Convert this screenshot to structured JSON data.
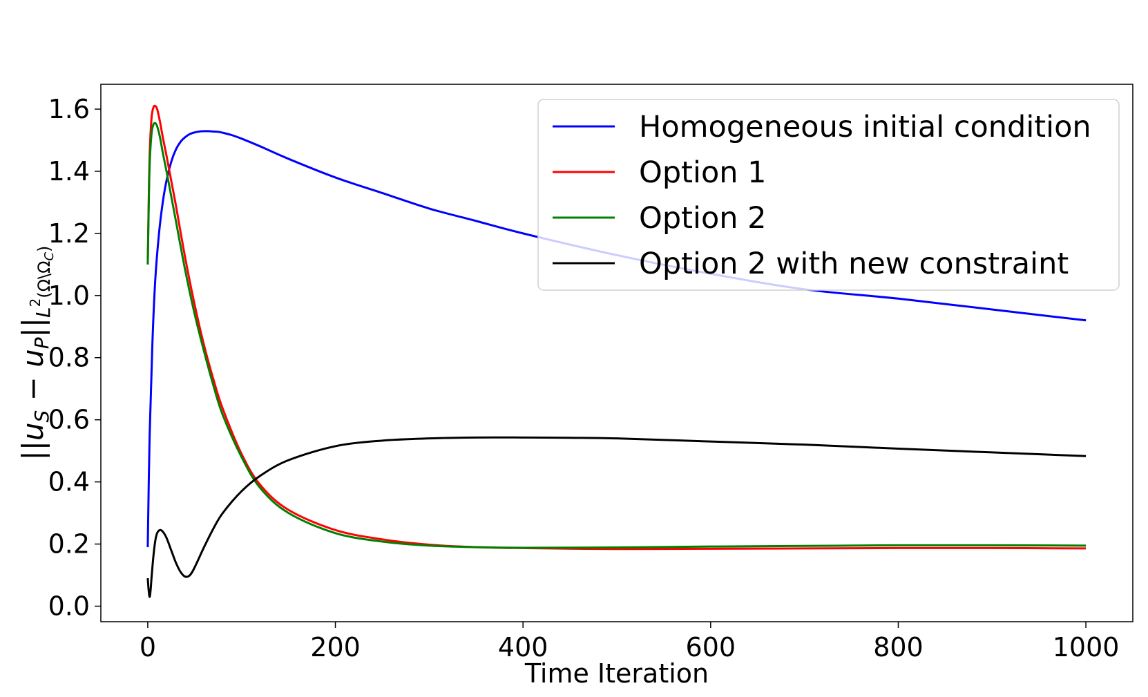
{
  "chart_data": {
    "type": "line",
    "title": "",
    "xlabel": "Time Iteration",
    "ylabel": "||u_S − u_P||_{L²(Ω\\Ω_C)}",
    "ylabel_parts": {
      "open_bars": "||",
      "u": "u",
      "sub_s": "S",
      "minus": " − ",
      "u2": "u",
      "sub_p": "P",
      "close_bars": "||",
      "norm_sub": "L",
      "norm_sup": "2",
      "norm_domain": "(Ω\\Ω",
      "norm_domain_sub": "C",
      "norm_close": ")"
    },
    "xlim": [
      -50,
      1050
    ],
    "ylim": [
      -0.05,
      1.68
    ],
    "xticks": [
      0,
      200,
      400,
      600,
      800,
      1000
    ],
    "xtick_labels": [
      "0",
      "200",
      "400",
      "600",
      "800",
      "1000"
    ],
    "yticks": [
      0.0,
      0.2,
      0.4,
      0.6,
      0.8,
      1.0,
      1.2,
      1.4,
      1.6
    ],
    "ytick_labels": [
      "0.0",
      "0.2",
      "0.4",
      "0.6",
      "0.8",
      "1.0",
      "1.2",
      "1.4",
      "1.6"
    ],
    "grid": false,
    "legend_position": "top-right",
    "series": [
      {
        "name": "Homogeneous initial condition",
        "color": "#0000ff",
        "x": [
          0,
          2,
          5,
          8,
          12,
          16,
          20,
          25,
          30,
          35,
          40,
          45,
          50,
          55,
          60,
          65,
          70,
          75,
          80,
          90,
          100,
          120,
          150,
          200,
          250,
          300,
          350,
          400,
          500,
          600,
          700,
          800,
          900,
          1000
        ],
        "y": [
          0.19,
          0.55,
          0.85,
          1.05,
          1.2,
          1.3,
          1.37,
          1.43,
          1.47,
          1.495,
          1.51,
          1.52,
          1.525,
          1.528,
          1.529,
          1.529,
          1.528,
          1.527,
          1.524,
          1.516,
          1.505,
          1.48,
          1.44,
          1.38,
          1.33,
          1.28,
          1.24,
          1.2,
          1.13,
          1.07,
          1.02,
          0.99,
          0.955,
          0.92
        ]
      },
      {
        "name": "Option 1",
        "color": "#ff0000",
        "x": [
          0,
          1,
          2,
          4,
          6,
          8,
          10,
          13,
          16,
          20,
          25,
          30,
          40,
          50,
          60,
          70,
          80,
          100,
          120,
          150,
          200,
          250,
          300,
          350,
          400,
          500,
          600,
          700,
          800,
          900,
          1000
        ],
        "y": [
          1.1,
          1.3,
          1.45,
          1.57,
          1.605,
          1.61,
          1.6,
          1.56,
          1.51,
          1.45,
          1.37,
          1.29,
          1.12,
          0.97,
          0.84,
          0.73,
          0.635,
          0.49,
          0.39,
          0.31,
          0.245,
          0.215,
          0.198,
          0.19,
          0.187,
          0.184,
          0.185,
          0.186,
          0.187,
          0.187,
          0.186
        ]
      },
      {
        "name": "Option 2",
        "color": "#008000",
        "x": [
          0,
          1,
          2,
          4,
          6,
          8,
          10,
          13,
          16,
          20,
          25,
          30,
          40,
          50,
          60,
          70,
          80,
          100,
          120,
          150,
          200,
          250,
          300,
          350,
          400,
          500,
          600,
          700,
          800,
          900,
          1000
        ],
        "y": [
          1.1,
          1.28,
          1.42,
          1.52,
          1.55,
          1.555,
          1.545,
          1.51,
          1.46,
          1.4,
          1.32,
          1.24,
          1.08,
          0.94,
          0.82,
          0.71,
          0.615,
          0.48,
          0.38,
          0.3,
          0.235,
          0.208,
          0.195,
          0.19,
          0.188,
          0.189,
          0.192,
          0.194,
          0.196,
          0.196,
          0.195
        ]
      },
      {
        "name": "Option 2 with new constraint",
        "color": "#000000",
        "x": [
          0,
          1,
          2,
          3,
          4,
          6,
          8,
          10,
          13,
          16,
          20,
          25,
          30,
          35,
          40,
          45,
          50,
          60,
          70,
          80,
          100,
          120,
          150,
          200,
          250,
          300,
          350,
          400,
          450,
          500,
          600,
          700,
          800,
          900,
          1000
        ],
        "y": [
          0.09,
          0.05,
          0.03,
          0.05,
          0.09,
          0.16,
          0.21,
          0.235,
          0.245,
          0.24,
          0.22,
          0.18,
          0.14,
          0.11,
          0.095,
          0.1,
          0.125,
          0.19,
          0.25,
          0.3,
          0.37,
          0.42,
          0.47,
          0.515,
          0.533,
          0.54,
          0.543,
          0.543,
          0.542,
          0.54,
          0.53,
          0.52,
          0.507,
          0.495,
          0.483
        ]
      }
    ]
  }
}
